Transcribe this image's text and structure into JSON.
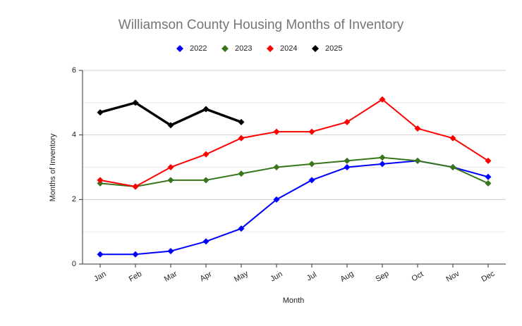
{
  "chart_data": {
    "type": "line",
    "title": "Williamson County Housing Months of Inventory",
    "x_label": "Month",
    "y_label": "Months of Inventory",
    "categories": [
      "Jan",
      "Feb",
      "Mar",
      "Apr",
      "May",
      "Jun",
      "Jul",
      "Aug",
      "Sep",
      "Oct",
      "Nov",
      "Dec"
    ],
    "series": [
      {
        "name": "2022",
        "color": "#0000ff",
        "values": [
          0.3,
          0.3,
          0.4,
          0.7,
          1.1,
          2.0,
          2.6,
          3.0,
          3.1,
          3.2,
          3.0,
          2.7
        ]
      },
      {
        "name": "2023",
        "color": "#38761d",
        "values": [
          2.5,
          2.4,
          2.6,
          2.6,
          2.8,
          3.0,
          3.1,
          3.2,
          3.3,
          3.2,
          3.0,
          2.5
        ]
      },
      {
        "name": "2024",
        "color": "#ff0000",
        "values": [
          2.6,
          2.4,
          3.0,
          3.4,
          3.9,
          4.1,
          4.1,
          4.4,
          5.1,
          4.2,
          3.9,
          3.2
        ]
      },
      {
        "name": "2025",
        "color": "#000000",
        "values": [
          4.7,
          5.0,
          4.3,
          4.8,
          4.4,
          null,
          null,
          null,
          null,
          null,
          null,
          null
        ]
      }
    ],
    "ylim": [
      0,
      6
    ],
    "yticks": [
      0,
      2,
      4,
      6
    ],
    "yminorticks": [
      1,
      3,
      5
    ],
    "grid": true,
    "legend": "top"
  }
}
